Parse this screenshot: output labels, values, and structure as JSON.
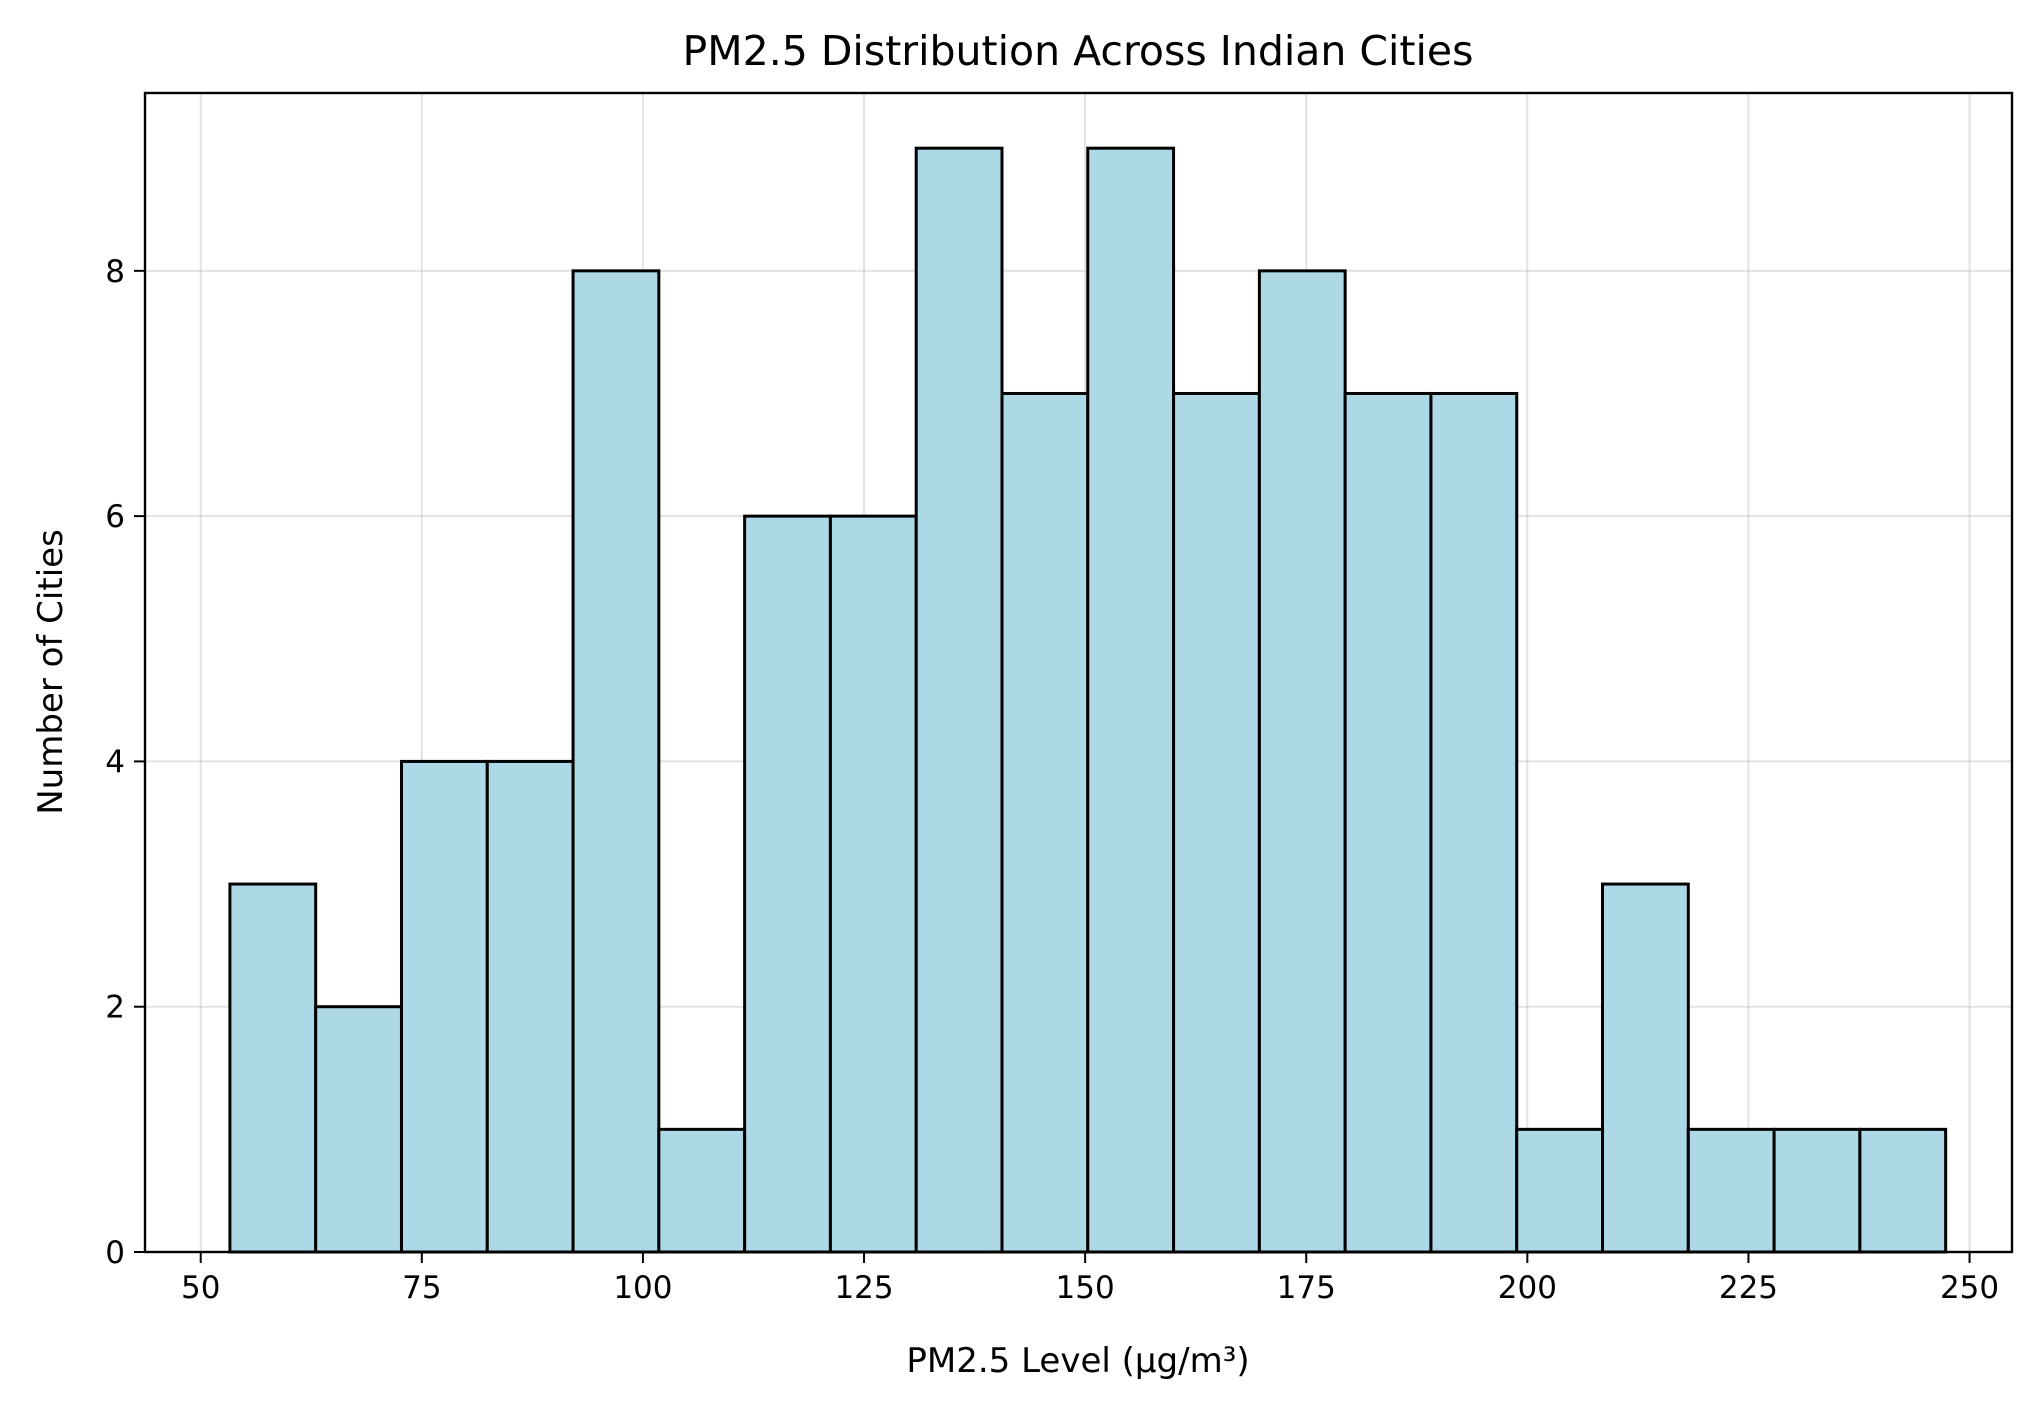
{
  "chart_data": {
    "type": "bar",
    "title": "PM2.5 Distribution Across Indian Cities",
    "xlabel": "PM2.5 Level (µg/m³)",
    "ylabel": "Number of Cities",
    "xlim": [
      43.7,
      254.8
    ],
    "ylim": [
      0,
      9.45
    ],
    "xticks": [
      50,
      75,
      100,
      125,
      150,
      175,
      200,
      225,
      250
    ],
    "yticks": [
      0,
      2,
      4,
      6,
      8
    ],
    "grid": true,
    "bar_color": "#add8e6",
    "edge_color": "#000000",
    "bin_edges": [
      53.3,
      63.0,
      72.7,
      82.4,
      92.1,
      101.8,
      111.5,
      121.2,
      130.9,
      140.6,
      150.3,
      160.0,
      169.7,
      179.4,
      189.1,
      198.8,
      208.5,
      218.2,
      227.9,
      237.6,
      247.3
    ],
    "values": [
      3,
      2,
      4,
      4,
      8,
      1,
      6,
      6,
      9,
      7,
      9,
      7,
      8,
      7,
      7,
      1,
      3,
      1,
      1,
      1
    ]
  }
}
